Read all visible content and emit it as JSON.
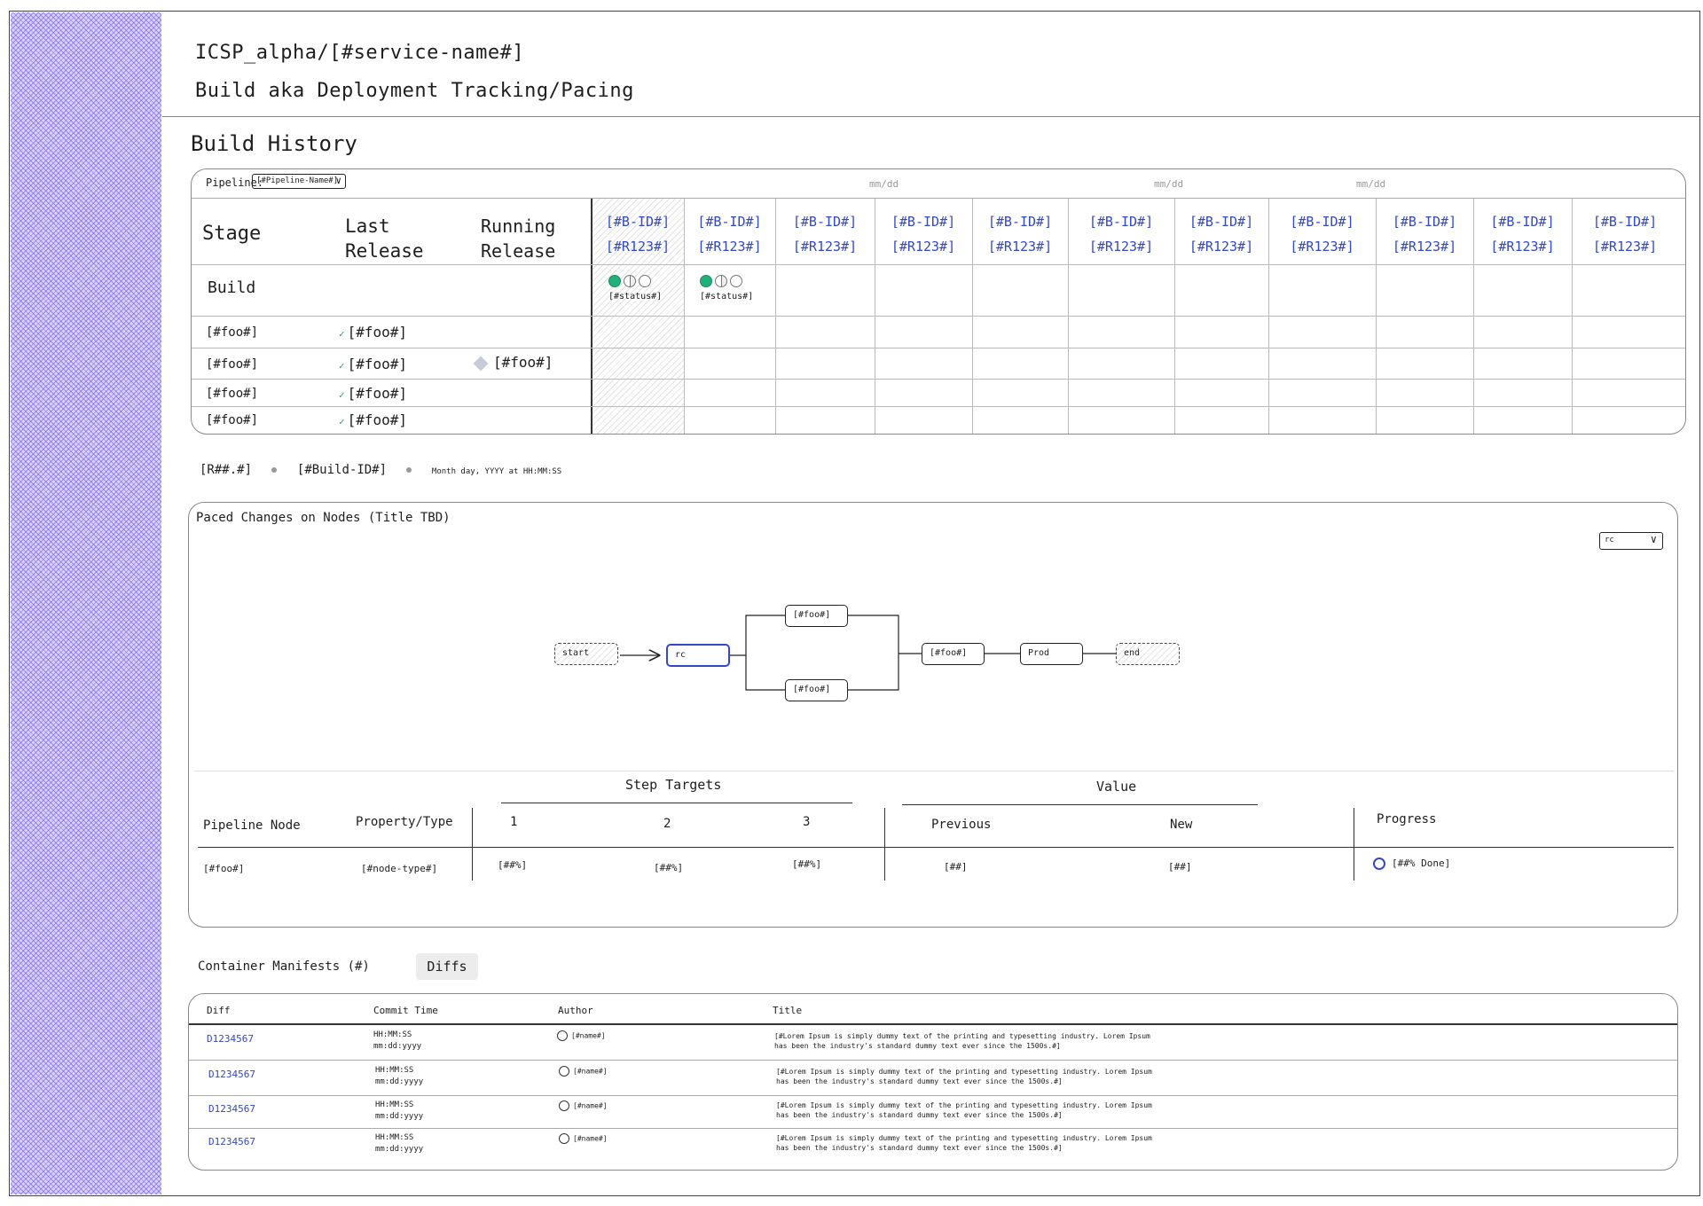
{
  "header": {
    "title": "ICSP_alpha/[#service-name#]",
    "subtitle": "Build aka Deployment Tracking/Pacing"
  },
  "build_history": {
    "section_title": "Build History",
    "pipeline_label": "Pipeline:",
    "pipeline_select": "[#Pipeline-Name#]",
    "date_labels": [
      "mm/dd",
      "mm/dd",
      "mm/dd"
    ],
    "columns": {
      "stage": "Stage",
      "last_release_1": "Last",
      "last_release_2": "Release",
      "running_release_1": "Running",
      "running_release_2": "Release"
    },
    "builds": [
      {
        "bid": "[#B-ID#]",
        "rid": "[#R123#]"
      },
      {
        "bid": "[#B-ID#]",
        "rid": "[#R123#]"
      },
      {
        "bid": "[#B-ID#]",
        "rid": "[#R123#]"
      },
      {
        "bid": "[#B-ID#]",
        "rid": "[#R123#]"
      },
      {
        "bid": "[#B-ID#]",
        "rid": "[#R123#]"
      },
      {
        "bid": "[#B-ID#]",
        "rid": "[#R123#]"
      },
      {
        "bid": "[#B-ID#]",
        "rid": "[#R123#]"
      },
      {
        "bid": "[#B-ID#]",
        "rid": "[#R123#]"
      },
      {
        "bid": "[#B-ID#]",
        "rid": "[#R123#]"
      },
      {
        "bid": "[#B-ID#]",
        "rid": "[#R123#]"
      },
      {
        "bid": "[#B-ID#]",
        "rid": "[#R123#]"
      }
    ],
    "build_row_label": "Build",
    "status_text": "[#status#]",
    "rows": [
      {
        "stage": "[#foo#]",
        "last": "[#foo#]",
        "running": ""
      },
      {
        "stage": "[#foo#]",
        "last": "[#foo#]",
        "running": "[#foo#]"
      },
      {
        "stage": "[#foo#]",
        "last": "[#foo#]",
        "running": ""
      },
      {
        "stage": "[#foo#]",
        "last": "[#foo#]",
        "running": ""
      }
    ]
  },
  "run_info": {
    "release": "[R##.#]",
    "build_id": "[#Build-ID#]",
    "timestamp": "Month day, YYYY at HH:MM:SS"
  },
  "paced_changes": {
    "title": "Paced Changes on Nodes (Title TBD)",
    "select_value": "rc",
    "nodes": {
      "start": "start",
      "rc": "rc",
      "upper": "[#foo#]",
      "lower": "[#foo#]",
      "middle": "[#foo#]",
      "prod": "Prod",
      "end": "end"
    },
    "table": {
      "step_targets_label": "Step Targets",
      "value_label": "Value",
      "headers": {
        "pipeline_node": "Pipeline Node",
        "property_type": "Property/Type",
        "step1": "1",
        "step2": "2",
        "step3": "3",
        "previous": "Previous",
        "new": "New",
        "progress": "Progress"
      },
      "row": {
        "node": "[#foo#]",
        "type": "[#node-type#]",
        "step1": "[##%]",
        "step2": "[##%]",
        "step3": "[##%]",
        "previous": "[##]",
        "new": "[##]",
        "progress": "[##% Done]"
      }
    }
  },
  "container_manifests": {
    "label": "Container Manifests (#)",
    "diffs_button": "Diffs",
    "headers": {
      "diff": "Diff",
      "commit_time": "Commit Time",
      "author": "Author",
      "title": "Title"
    },
    "rows": [
      {
        "diff": "D1234567",
        "time": "HH:MM:SS",
        "date": "mm:dd:yyyy",
        "author": "[#name#]",
        "title": "[#Lorem Ipsum is simply dummy text of the printing and typesetting industry. Lorem Ipsum has been the industry's standard dummy text ever since the 1500s.#]"
      },
      {
        "diff": "D1234567",
        "time": "HH:MM:SS",
        "date": "mm:dd:yyyy",
        "author": "[#name#]",
        "title": "[#Lorem Ipsum is simply dummy text of the printing and typesetting industry. Lorem Ipsum has been the industry's standard dummy text ever since the 1500s.#]"
      },
      {
        "diff": "D1234567",
        "time": "HH:MM:SS",
        "date": "mm:dd:yyyy",
        "author": "[#name#]",
        "title": "[#Lorem Ipsum is simply dummy text of the printing and typesetting industry. Lorem Ipsum has been the industry's standard dummy text ever since the 1500s.#]"
      },
      {
        "diff": "D1234567",
        "time": "HH:MM:SS",
        "date": "mm:dd:yyyy",
        "author": "[#name#]",
        "title": "[#Lorem Ipsum is simply dummy text of the printing and typesetting industry. Lorem Ipsum has been the industry's standard dummy text ever since the 1500s.#]"
      }
    ]
  }
}
